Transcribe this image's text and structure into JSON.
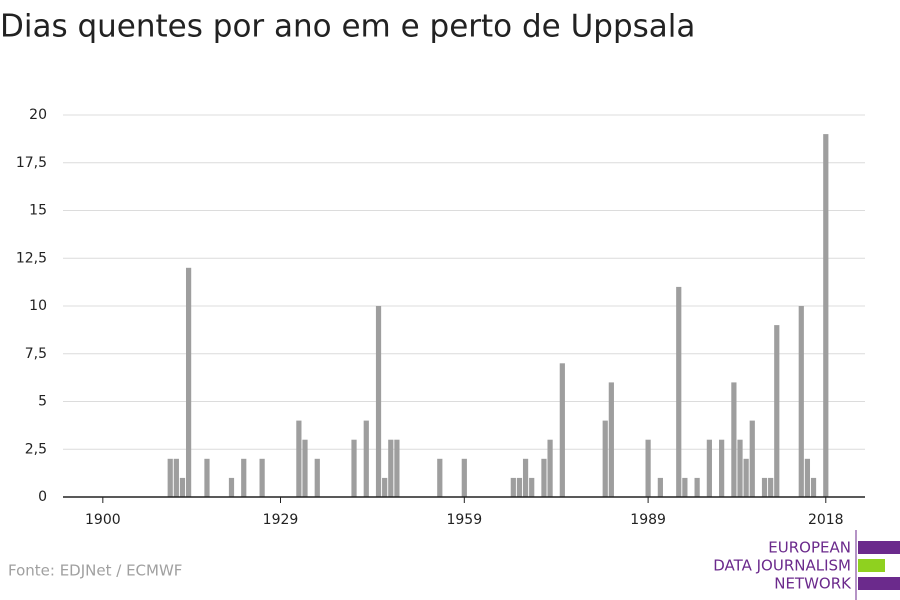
{
  "chart_data": {
    "type": "bar",
    "title": "Dias quentes por ano em e perto de Uppsala",
    "source": "Fonte: EDJNet / ECMWF",
    "logo": [
      "EUROPEAN",
      "DATA JOURNALISM",
      "NETWORK"
    ],
    "x": [
      1911,
      1912,
      1913,
      1914,
      1917,
      1921,
      1923,
      1926,
      1932,
      1933,
      1935,
      1941,
      1943,
      1945,
      1946,
      1947,
      1948,
      1955,
      1959,
      1967,
      1968,
      1969,
      1970,
      1972,
      1973,
      1975,
      1982,
      1983,
      1989,
      1991,
      1994,
      1995,
      1997,
      1999,
      2001,
      2003,
      2004,
      2005,
      2006,
      2008,
      2009,
      2010,
      2014,
      2015,
      2016,
      2018
    ],
    "values": [
      2,
      2,
      1,
      12,
      2,
      1,
      2,
      2,
      4,
      3,
      2,
      3,
      4,
      10,
      1,
      3,
      3,
      2,
      2,
      1,
      1,
      2,
      1,
      2,
      3,
      7,
      4,
      6,
      3,
      1,
      11,
      1,
      1,
      3,
      3,
      6,
      3,
      2,
      4,
      1,
      1,
      9,
      10,
      2,
      1,
      19
    ],
    "color": "#9e9e9e",
    "xlim": [
      1893.5,
      2024.4
    ],
    "xticks": [
      1900,
      1929,
      1959,
      1989,
      2018
    ],
    "ylim": [
      0,
      20
    ],
    "yticks": [
      0,
      {
        "value": 2.5,
        "label": "2,5"
      },
      5,
      {
        "value": 7.5,
        "label": "7,5"
      },
      10,
      {
        "value": 12.5,
        "label": "12,5"
      },
      15,
      {
        "value": 17.5,
        "label": "17,5"
      },
      20
    ],
    "grid": true
  }
}
